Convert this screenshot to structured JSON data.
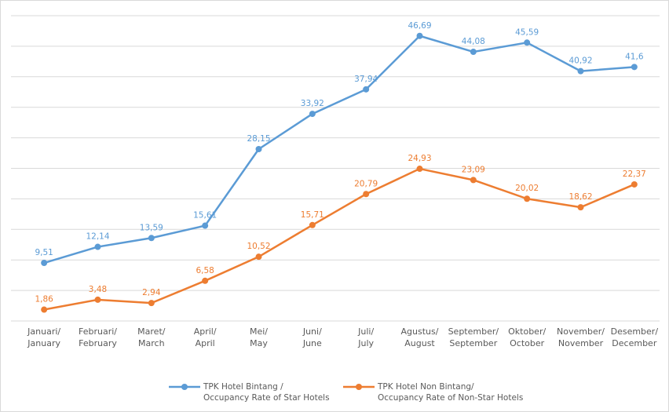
{
  "chart_data": {
    "type": "line",
    "categories": [
      "Januari/\nJanuary",
      "Februari/\nFebruary",
      "Maret/\nMarch",
      "April/\nApril",
      "Mei/\nMay",
      "Juni/\nJune",
      "Juli/\nJuly",
      "Agustus/\nAugust",
      "September/\nSeptember",
      "Oktober/\nOctober",
      "November/\nNovember",
      "Desember/\nDecember"
    ],
    "series": [
      {
        "name": "TPK Hotel  Bintang /\nOccupancy Rate of Star Hotels",
        "color": "#5b9bd5",
        "values": [
          9.51,
          12.14,
          13.59,
          15.61,
          28.15,
          33.92,
          37.94,
          46.69,
          44.08,
          45.59,
          40.92,
          41.6
        ],
        "value_labels": [
          "9,51",
          "12,14",
          "13,59",
          "15,61",
          "28,15",
          "33,92",
          "37,94",
          "46,69",
          "44,08",
          "45,59",
          "40,92",
          "41,6"
        ]
      },
      {
        "name": "TPK Hotel   Non Bintang/\nOccupancy Rate of Non-Star Hotels",
        "color": "#ed7d31",
        "values": [
          1.86,
          3.48,
          2.94,
          6.58,
          10.52,
          15.71,
          20.79,
          24.93,
          23.09,
          20.02,
          18.62,
          22.37
        ],
        "value_labels": [
          "1,86",
          "3,48",
          "2,94",
          "6,58",
          "10,52",
          "15,71",
          "20,79",
          "24,93",
          "23,09",
          "20,02",
          "18,62",
          "22,37"
        ]
      }
    ],
    "ylim": [
      0,
      50
    ],
    "yticks": [
      0,
      5,
      10,
      15,
      20,
      25,
      30,
      35,
      40,
      45,
      50
    ],
    "grid": true
  }
}
